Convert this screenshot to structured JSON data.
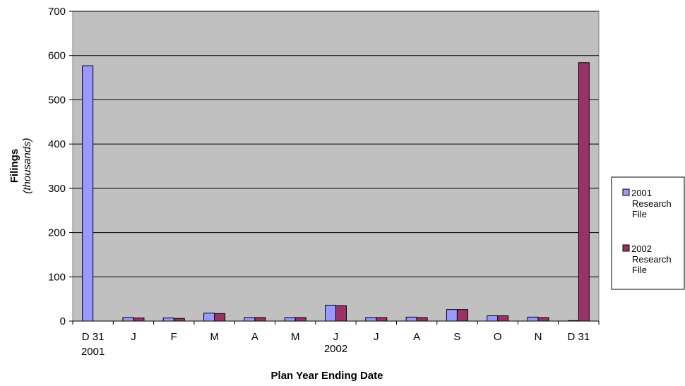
{
  "chart_data": {
    "type": "bar",
    "categories": [
      "D 31",
      "J",
      "F",
      "M",
      "A",
      "M",
      "J",
      "J",
      "A",
      "S",
      "O",
      "N",
      "D 31"
    ],
    "category_sublabels": {
      "first": "2001",
      "middle": "2002"
    },
    "series": [
      {
        "name": [
          "2001",
          "Research",
          "File"
        ],
        "color": "#9999ff",
        "values": [
          577,
          8,
          7,
          18,
          8,
          8,
          36,
          8,
          9,
          26,
          12,
          9,
          1
        ]
      },
      {
        "name": [
          "2002",
          "Research",
          "File"
        ],
        "color": "#993366",
        "values": [
          null,
          7,
          6,
          17,
          8,
          8,
          35,
          8,
          8,
          26,
          12,
          8,
          584
        ]
      }
    ],
    "xlabel": "Plan Year Ending Date",
    "ylabel": "Filings",
    "ylabel_unit": "(thousands)",
    "ylim": [
      0,
      700
    ],
    "yticks": [
      "0",
      "100",
      "200",
      "300",
      "400",
      "500",
      "600",
      "700"
    ],
    "grid": true,
    "plot_background": "#c0c0c0",
    "legend_position": "right"
  }
}
